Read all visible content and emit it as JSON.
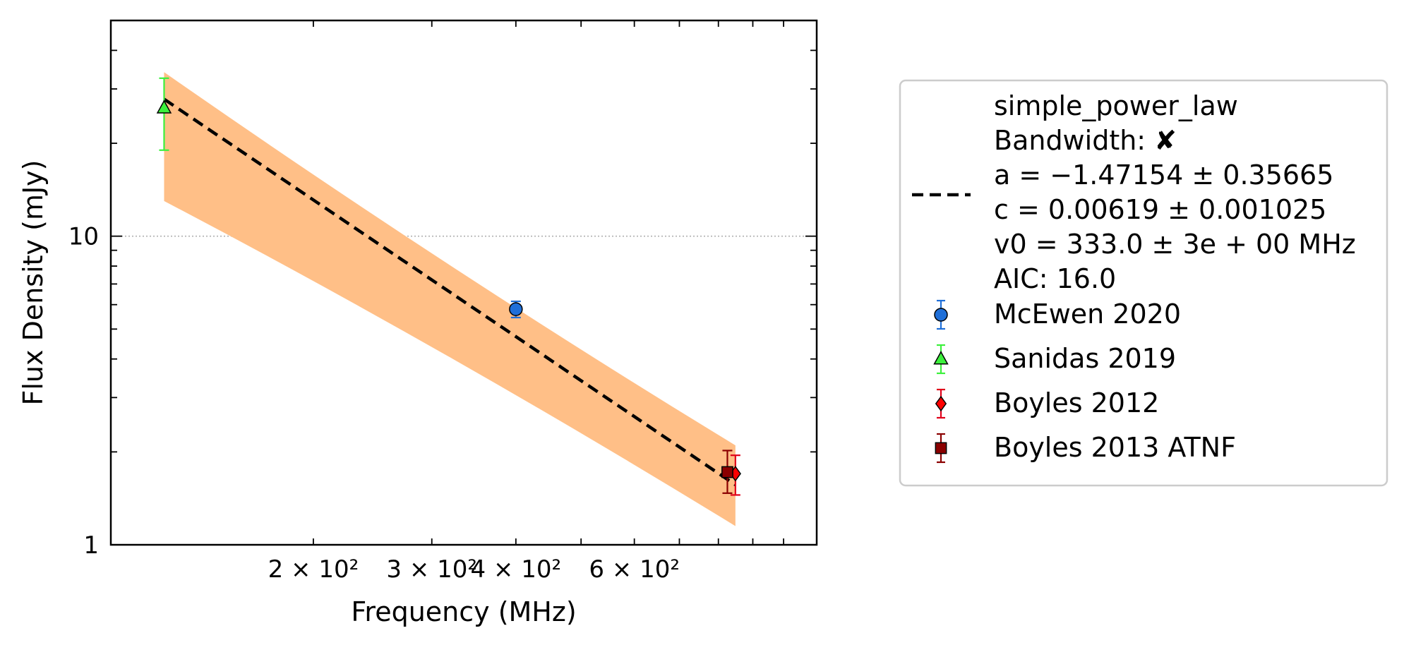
{
  "chart_data": {
    "type": "scatter",
    "xlabel": "Frequency (MHz)",
    "ylabel": "Flux Density (mJy)",
    "x_scale": "log",
    "y_scale": "log",
    "xlim": [
      100,
      1120
    ],
    "ylim": [
      1,
      50
    ],
    "x_ticks": [
      {
        "value": 200,
        "label": "2 × 10²"
      },
      {
        "value": 300,
        "label": "3 × 10²"
      },
      {
        "value": 400,
        "label": "4 × 10²"
      },
      {
        "value": 600,
        "label": "6 × 10²"
      }
    ],
    "y_ticks": [
      {
        "value": 1,
        "label": "1"
      },
      {
        "value": 10,
        "label": "10"
      }
    ],
    "grid": "dotted line at y=10",
    "legend_placement": "outside right",
    "fit": {
      "name": "simple_power_law",
      "bandwidth_line": "Bandwidth: ✘",
      "param_lines": [
        "a = −1.47154 ± 0.35665",
        "c = 0.00619 ± 0.001025",
        "v0 = 333.0 ± 3e + 00 MHz",
        "AIC: 16.0"
      ],
      "a": -1.47154,
      "c": 0.00619,
      "v0": 333.0,
      "x_range": [
        120,
        848
      ],
      "band_upper_y": [
        34.0,
        2.1
      ],
      "band_lower_y": [
        13.0,
        1.15
      ],
      "line_color": "#000000",
      "band_color": "#ffbf87"
    },
    "series": [
      {
        "name": "McEwen 2020",
        "marker": "circle",
        "color": "#1f6fd8",
        "error_color": "#1f6fd8",
        "points": [
          {
            "x": 400,
            "y": 5.8,
            "err_low": 0.35,
            "err_high": 0.35
          }
        ]
      },
      {
        "name": "Sanidas 2019",
        "marker": "triangle",
        "color": "#3cf03c",
        "error_color": "#3cf03c",
        "points": [
          {
            "x": 120,
            "y": 26.0,
            "err_low": 7.0,
            "err_high": 6.5
          }
        ]
      },
      {
        "name": "Boyles 2012",
        "marker": "diamond",
        "color": "#ff0000",
        "error_color": "#e0001a",
        "points": [
          {
            "x": 848,
            "y": 1.7,
            "err_low": 0.25,
            "err_high": 0.25
          }
        ]
      },
      {
        "name": "Boyles 2013 ATNF",
        "marker": "square",
        "color": "#8b0000",
        "error_color": "#8b0000",
        "points": [
          {
            "x": 825,
            "y": 1.72,
            "err_low": 0.25,
            "err_high": 0.3
          }
        ]
      }
    ]
  }
}
